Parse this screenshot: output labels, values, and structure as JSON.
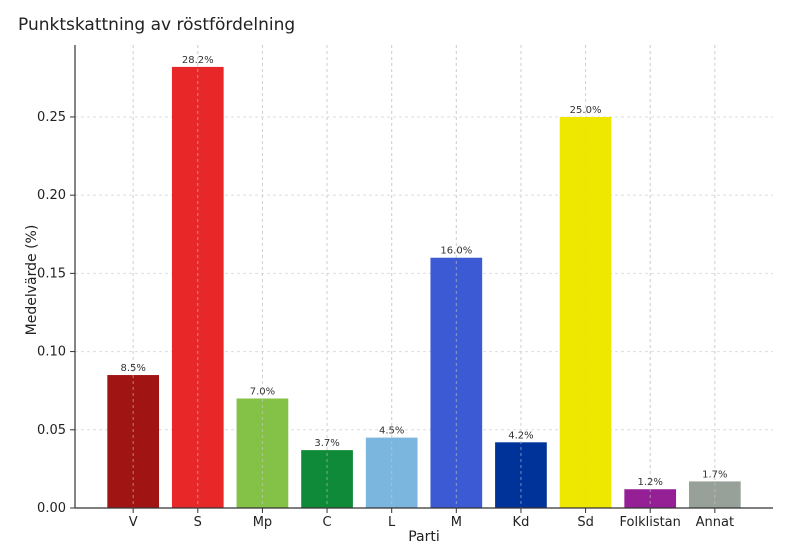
{
  "chart_data": {
    "type": "bar",
    "title": "Punktskattning av röstfördelning",
    "xlabel": "Parti",
    "ylabel": "Medelvärde (%)",
    "categories": [
      "V",
      "S",
      "Mp",
      "C",
      "L",
      "M",
      "Kd",
      "Sd",
      "Folklistan",
      "Annat"
    ],
    "values": [
      0.085,
      0.282,
      0.07,
      0.037,
      0.045,
      0.16,
      0.042,
      0.25,
      0.012,
      0.017
    ],
    "data_labels": [
      "8.5%",
      "28.2%",
      "7.0%",
      "3.7%",
      "4.5%",
      "16.0%",
      "4.2%",
      "25.0%",
      "1.2%",
      "1.7%"
    ],
    "colors": [
      "#a01414",
      "#e82828",
      "#84c247",
      "#0f8a38",
      "#7ab6dd",
      "#3c5ad4",
      "#00339a",
      "#eee800",
      "#952096",
      "#98a09a"
    ],
    "yticks": [
      0.0,
      0.05,
      0.1,
      0.15,
      0.2,
      0.25
    ],
    "ytick_labels": [
      "0.00",
      "0.05",
      "0.10",
      "0.15",
      "0.20",
      "0.25"
    ],
    "ylim": [
      0,
      0.296
    ],
    "grid": true
  }
}
